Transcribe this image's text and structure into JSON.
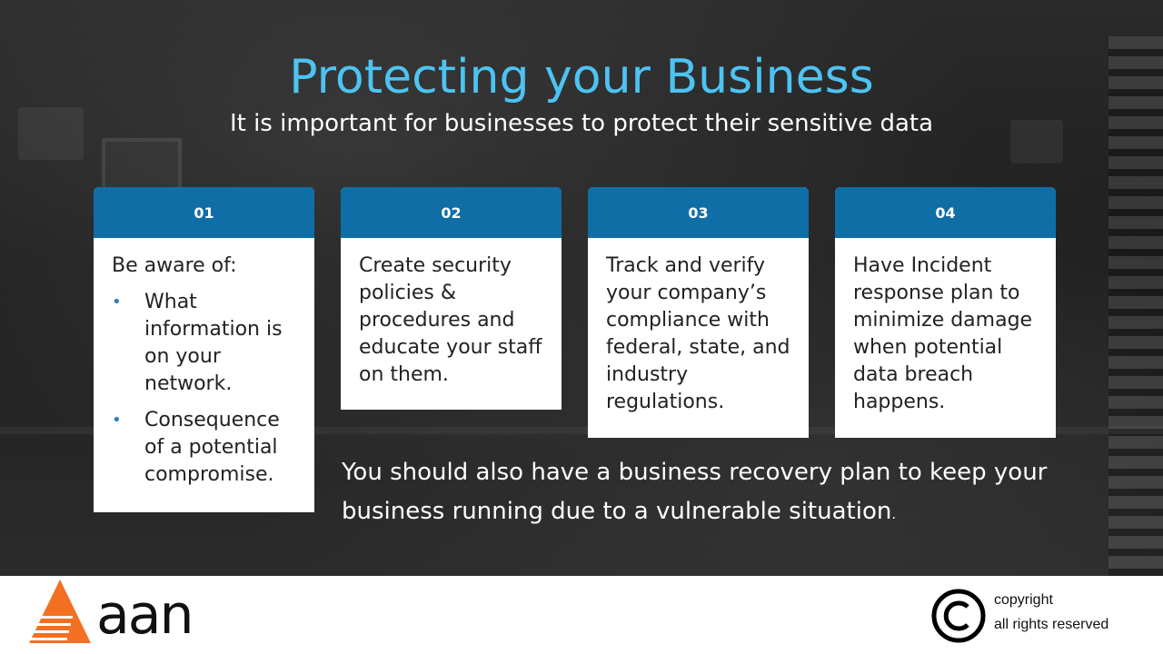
{
  "slide": {
    "title": "Protecting your Business",
    "subtitle": "It is important for businesses to protect their sensitive data"
  },
  "cards": [
    {
      "number": "01",
      "intro": "Be aware of:",
      "bullets": [
        "What information is on your network.",
        "Consequence of a potential compromise."
      ]
    },
    {
      "number": "02",
      "text": "Create security policies & procedures and educate your staff on them."
    },
    {
      "number": "03",
      "text": "Track and verify your company’s compliance with federal, state, and industry regulations."
    },
    {
      "number": "04",
      "text": "Have Incident response plan to minimize damage when potential data breach happens."
    }
  ],
  "recovery": {
    "text": "You should also have a business recovery plan to keep your business running due to a vulnerable situation",
    "end": "."
  },
  "footer": {
    "logo_text": "aan",
    "copyright_line1": "copyright",
    "copyright_line2": "all rights reserved"
  },
  "colors": {
    "title": "#4dc3f2",
    "card_header": "#0f6ea6",
    "bullet": "#2a7fc0",
    "logo_orange": "#f36f21"
  },
  "icons": {
    "bullet": "bullet-dot-icon",
    "logo": "aan-triangle-logo",
    "copyright": "copyright-icon"
  }
}
